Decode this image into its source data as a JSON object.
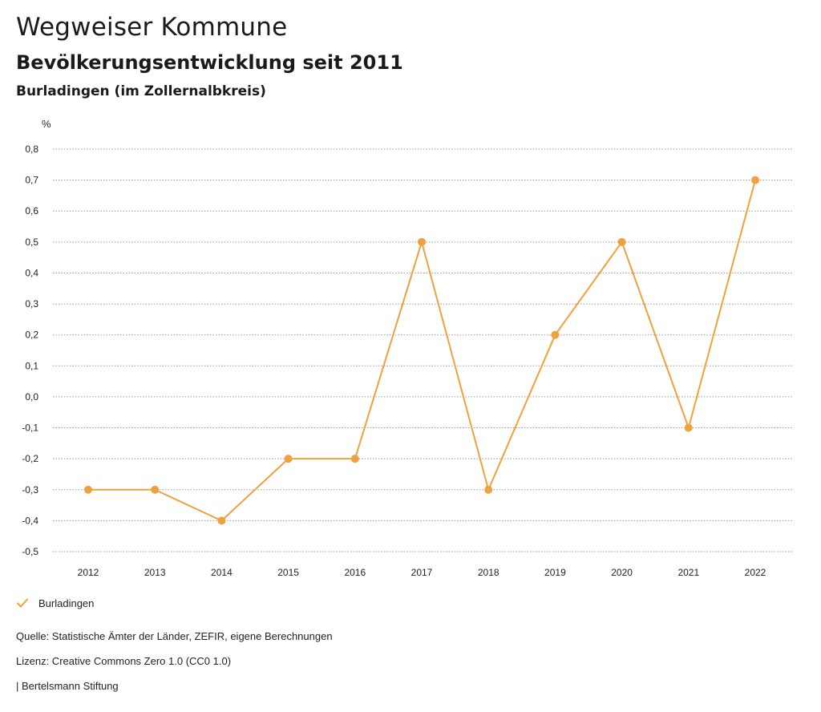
{
  "header": {
    "title": "Wegweiser Kommune",
    "subtitle": "Bevölkerungsentwicklung seit 2011",
    "region": "Burladingen (im Zollernalbkreis)"
  },
  "chart_data": {
    "type": "line",
    "unit_label": "%",
    "x": [
      "2012",
      "2013",
      "2014",
      "2015",
      "2016",
      "2017",
      "2018",
      "2019",
      "2020",
      "2021",
      "2022"
    ],
    "series": [
      {
        "name": "Burladingen",
        "color": "#f0a03c",
        "values": [
          -0.3,
          -0.3,
          -0.4,
          -0.2,
          -0.2,
          0.5,
          -0.3,
          0.2,
          0.5,
          -0.1,
          0.7
        ]
      }
    ],
    "yticks": [
      "0,8",
      "0,7",
      "0,6",
      "0,5",
      "0,4",
      "0,3",
      "0,2",
      "0,1",
      "0,0",
      "-0,1",
      "-0,2",
      "-0,3",
      "-0,4",
      "-0,5"
    ],
    "ylim": [
      -0.5,
      0.8
    ],
    "grid": true,
    "legend_position": "bottom-left"
  },
  "legend": {
    "label": "Burladingen"
  },
  "footer": {
    "source": "Quelle: Statistische Ämter der Länder, ZEFIR, eigene Berechnungen",
    "license": "Lizenz: Creative Commons Zero 1.0 (CC0 1.0)",
    "publisher": "| Bertelsmann Stiftung"
  }
}
